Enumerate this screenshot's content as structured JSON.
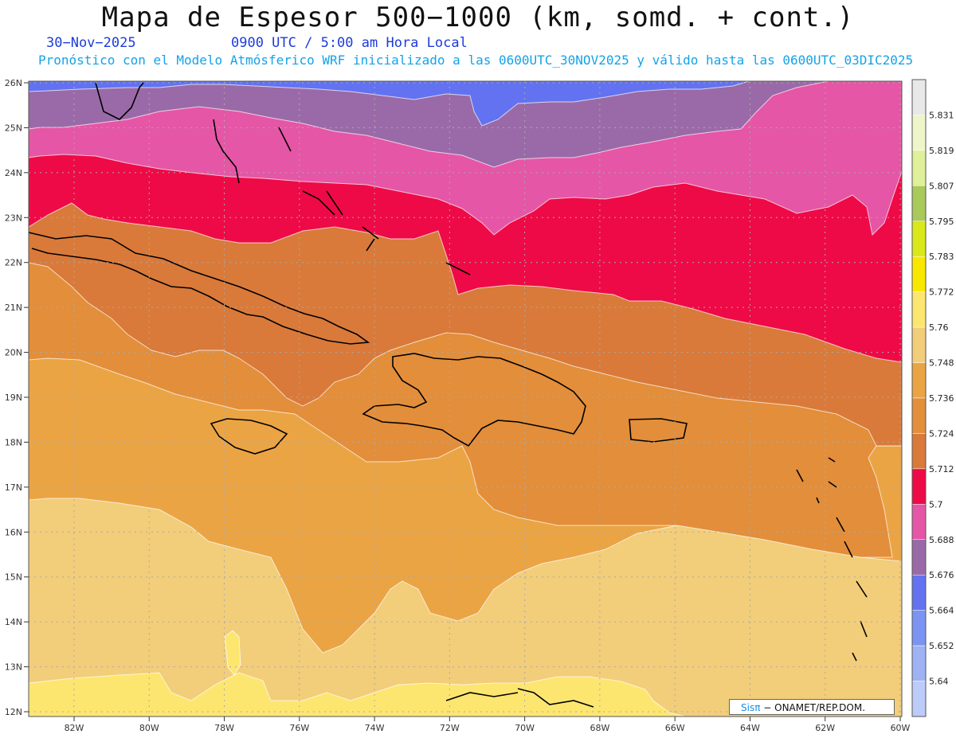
{
  "header": {
    "title": "Mapa de Espesor 500−1000 (km, somd. + cont.)",
    "date": "30−Nov−2025",
    "time": "0900 UTC / 5:00 am Hora Local",
    "model_line": "Pronóstico con el Modelo Atmósferico WRF inicializado a las 0600UTC_30NOV2025 y válido hasta las  0600UTC_03DIC2025"
  },
  "axes": {
    "lat_labels": [
      "26N",
      "25N",
      "24N",
      "23N",
      "22N",
      "21N",
      "20N",
      "19N",
      "18N",
      "17N",
      "16N",
      "15N",
      "14N",
      "13N",
      "12N"
    ],
    "lon_labels": [
      "82W",
      "80W",
      "78W",
      "76W",
      "74W",
      "72W",
      "70W",
      "68W",
      "66W",
      "64W",
      "62W",
      "60W"
    ]
  },
  "legend": {
    "levels": [
      "5.831",
      "5.819",
      "5.807",
      "5.795",
      "5.783",
      "5.772",
      "5.76",
      "5.748",
      "5.736",
      "5.724",
      "5.712",
      "5.7",
      "5.688",
      "5.676",
      "5.664",
      "5.652",
      "5.64"
    ],
    "colors": [
      "#e8e8e8",
      "#eef5c8",
      "#dff09a",
      "#a9c95a",
      "#d8e81a",
      "#f8e800",
      "#fde670",
      "#f2cd7a",
      "#eba444",
      "#e38e3a",
      "#d97a3a",
      "#ee0a46",
      "#e556a6",
      "#9a6aa8",
      "#6272f0",
      "#7b94f2",
      "#9eb2f4",
      "#bccbf8"
    ]
  },
  "map_colors": {
    "c5652": "#7b94f2",
    "c5664": "#6272f0",
    "c5676": "#9a6aa8",
    "c5688": "#e556a6",
    "c5700": "#ee0a46",
    "c5712": "#d97a3a",
    "c5724": "#e38e3a",
    "c5736": "#eba444",
    "c5748": "#f2cd7a",
    "c5760": "#fde670"
  },
  "credit": {
    "sis": "Sisπ",
    "rest": " − ONAMET/REP.DOM."
  }
}
